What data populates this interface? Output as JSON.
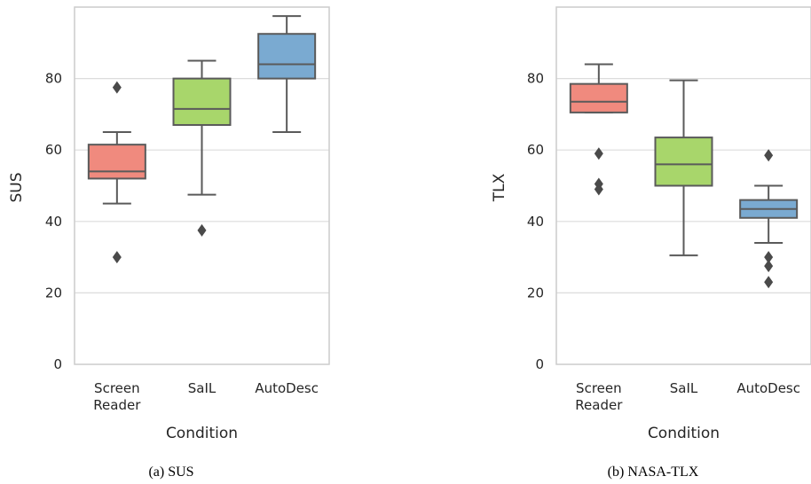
{
  "chart_data": [
    {
      "type": "box",
      "caption": "(a) SUS",
      "xlabel": "Condition",
      "ylabel": "SUS",
      "ylim": [
        0,
        100
      ],
      "yticks": [
        0,
        20,
        40,
        60,
        80
      ],
      "grid": "y",
      "categories": [
        {
          "label": [
            "Screen",
            "Reader"
          ],
          "color": "#f08a7e",
          "q1": 52,
          "median": 54,
          "q3": 61.5,
          "whisker_low": 45,
          "whisker_high": 65,
          "outliers": [
            77.5,
            30
          ]
        },
        {
          "label": [
            "SaIL"
          ],
          "color": "#a8d66b",
          "q1": 67,
          "median": 71.5,
          "q3": 80,
          "whisker_low": 47.5,
          "whisker_high": 85,
          "outliers": [
            37.5
          ]
        },
        {
          "label": [
            "AutoDesc"
          ],
          "color": "#7aaad1",
          "q1": 80,
          "median": 84,
          "q3": 92.5,
          "whisker_low": 65,
          "whisker_high": 97.5,
          "outliers": []
        }
      ]
    },
    {
      "type": "box",
      "caption": "(b) NASA-TLX",
      "xlabel": "Condition",
      "ylabel": "TLX",
      "ylim": [
        0,
        100
      ],
      "yticks": [
        0,
        20,
        40,
        60,
        80
      ],
      "grid": "y",
      "categories": [
        {
          "label": [
            "Screen",
            "Reader"
          ],
          "color": "#f08a7e",
          "q1": 70.5,
          "median": 73.5,
          "q3": 78.5,
          "whisker_low": 70.5,
          "whisker_high": 84,
          "outliers": [
            59,
            50.5,
            49
          ]
        },
        {
          "label": [
            "SaIL"
          ],
          "color": "#a8d66b",
          "q1": 50,
          "median": 56,
          "q3": 63.5,
          "whisker_low": 30.5,
          "whisker_high": 79.5,
          "outliers": []
        },
        {
          "label": [
            "AutoDesc"
          ],
          "color": "#7aaad1",
          "q1": 41,
          "median": 43.5,
          "q3": 46,
          "whisker_low": 34,
          "whisker_high": 50,
          "outliers": [
            58.5,
            30,
            27.5,
            23
          ]
        }
      ]
    }
  ]
}
